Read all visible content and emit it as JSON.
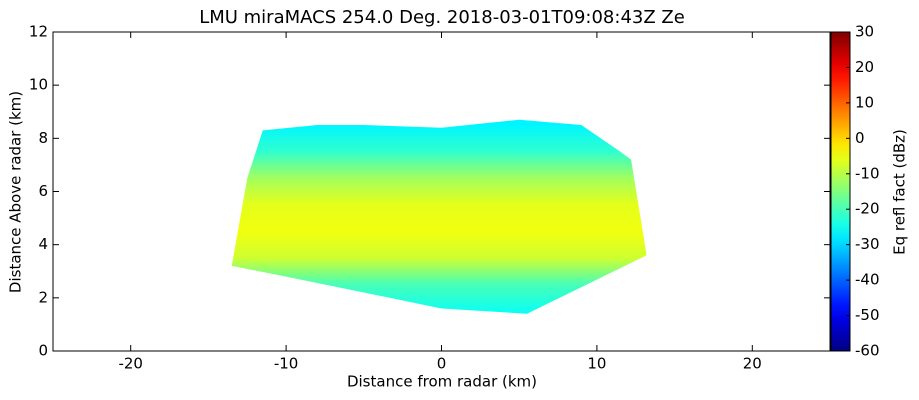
{
  "chart_data": {
    "type": "rhi",
    "title": "LMU miraMACS 254.0 Deg. 2018-03-01T09:08:43Z  Ze",
    "xlabel": "Distance from radar (km)",
    "ylabel": "Distance Above radar  (km)",
    "xlim": [
      -25,
      25
    ],
    "ylim": [
      0,
      12
    ],
    "xticks": [
      -20,
      -10,
      0,
      10,
      20
    ],
    "yticks": [
      0,
      2,
      4,
      6,
      8,
      10,
      12
    ],
    "colorbar": {
      "label": "Eq refl fact (dBz)",
      "clim": [
        -60,
        30
      ],
      "ticks": [
        -60,
        -50,
        -40,
        -30,
        -20,
        -10,
        0,
        10,
        20,
        30
      ]
    },
    "echo_outline": {
      "x": [
        -13.5,
        -12.5,
        -11.5,
        -8,
        -5,
        0,
        5,
        9,
        11.5,
        12.2,
        13.2,
        5.5,
        0,
        -5,
        -10,
        -13.5
      ],
      "y": [
        3.2,
        6.5,
        8.3,
        8.5,
        8.5,
        8.4,
        8.7,
        8.5,
        7.5,
        7.2,
        3.6,
        1.4,
        1.6,
        2.2,
        2.8,
        3.2
      ]
    },
    "profile": {
      "heights": [
        1.5,
        2.5,
        3.5,
        4.5,
        5.5,
        6.5,
        7.5,
        8.5
      ],
      "values": [
        -25,
        -20,
        -8,
        -5,
        -6,
        -12,
        -22,
        -27
      ]
    }
  }
}
